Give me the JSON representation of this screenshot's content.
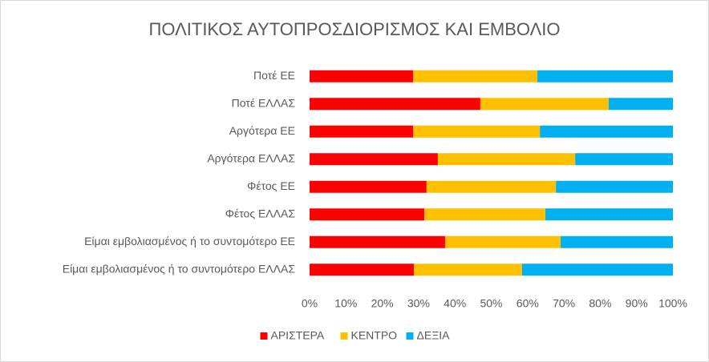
{
  "chart_data": {
    "type": "stacked_bar_horizontal",
    "title": "ΠΟΛΙΤΙΚΟΣ ΑΥΤΟΠΡΟΣΔΙΟΡΙΣΜΟΣ  ΚΑΙ ΕΜΒΟΛΙΟ",
    "categories": [
      "Ποτέ ΕΕ",
      "Ποτέ ΕΛΛΑΣ",
      "Αργότερα ΕΕ",
      "Αργότερα ΕΛΛΑΣ",
      "Φέτος ΕΕ",
      "Φέτος ΕΛΛΑΣ",
      "Είμαι εμβολιασμένος ή το συντομότερο ΕΕ",
      "Είμαι εμβολιασμένος ή το συντομότερο ΕΛΛΑΣ"
    ],
    "series": [
      {
        "name": "ΑΡΙΣΤΕΡΑ",
        "color": "#ff0000",
        "values": [
          28.5,
          47.0,
          28.5,
          35.3,
          32.2,
          31.6,
          37.3,
          28.7
        ]
      },
      {
        "name": "ΚΕΝΤΡΟ",
        "color": "#ffc000",
        "values": [
          34.2,
          35.3,
          34.9,
          37.8,
          35.6,
          33.3,
          31.8,
          29.8
        ]
      },
      {
        "name": "ΔΕΞΙΑ",
        "color": "#00b0f0",
        "values": [
          37.3,
          17.7,
          36.6,
          26.9,
          32.2,
          35.1,
          30.9,
          41.5
        ]
      }
    ],
    "xlim": [
      0,
      100
    ],
    "xticks": [
      {
        "value": 0,
        "label": "0%"
      },
      {
        "value": 10,
        "label": "10%"
      },
      {
        "value": 20,
        "label": "20%"
      },
      {
        "value": 30,
        "label": "30%"
      },
      {
        "value": 40,
        "label": "40%"
      },
      {
        "value": 50,
        "label": "50%"
      },
      {
        "value": 60,
        "label": "60%"
      },
      {
        "value": 70,
        "label": "70%"
      },
      {
        "value": 80,
        "label": "80%"
      },
      {
        "value": 90,
        "label": "90%"
      },
      {
        "value": 100,
        "label": "100%"
      }
    ],
    "legend": "bottom"
  }
}
